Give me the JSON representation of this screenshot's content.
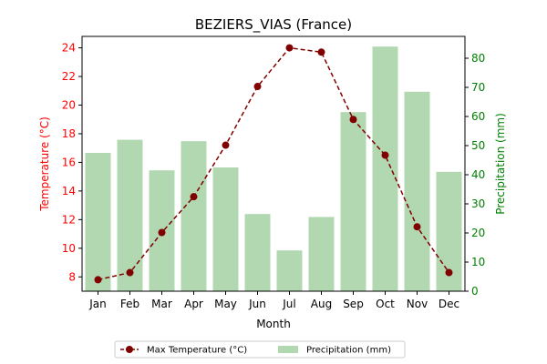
{
  "chart_data": {
    "type": "bar",
    "title": "BEZIERS_VIAS (France)",
    "xlabel": "Month",
    "y_left_label": "Temperature (°C)",
    "y_right_label": "Precipitation (mm)",
    "categories": [
      "Jan",
      "Feb",
      "Mar",
      "Apr",
      "May",
      "Jun",
      "Jul",
      "Aug",
      "Sep",
      "Oct",
      "Nov",
      "Dec"
    ],
    "y_left_ticks": [
      "8",
      "10",
      "12",
      "14",
      "16",
      "18",
      "20",
      "22",
      "24"
    ],
    "y_right_ticks": [
      "0",
      "10",
      "20",
      "30",
      "40",
      "50",
      "60",
      "70",
      "80"
    ],
    "y_left_range": [
      7.0,
      24.8
    ],
    "y_right_range": [
      0,
      87.5
    ],
    "grid": false,
    "legend_position": "bottom-center",
    "series": [
      {
        "name": "Max Temperature (°C)",
        "type": "line",
        "axis": "left",
        "color": "#800000",
        "style": "dashed",
        "marker": "circle",
        "values": [
          7.8,
          8.3,
          11.1,
          13.6,
          17.2,
          21.3,
          24.0,
          23.7,
          19.0,
          16.5,
          11.5,
          8.3
        ]
      },
      {
        "name": "Precipitation (mm)",
        "type": "bar",
        "axis": "right",
        "color": "#b2d8b2",
        "values": [
          47.5,
          52.0,
          41.5,
          51.5,
          42.5,
          26.5,
          14.0,
          25.5,
          61.5,
          84.0,
          68.5,
          41.0
        ]
      }
    ],
    "colors": {
      "left_axis": "#ff0000",
      "right_axis": "#008000"
    }
  }
}
